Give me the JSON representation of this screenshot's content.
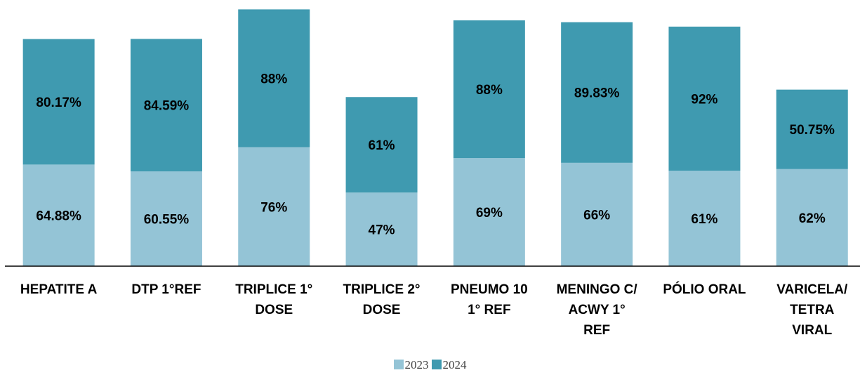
{
  "chart_data": {
    "type": "stacked_bar",
    "categories": [
      "HEPATITE A",
      "DTP 1°REF",
      "TRIPLICE 1° DOSE",
      "TRIPLICE 2° DOSE",
      "PNEUMO 10 1° REF",
      "MENINGO C/ ACWY 1° REF",
      "PÓLIO ORAL",
      "VARICELA/ TETRA VIRAL"
    ],
    "series": [
      {
        "name": "2023",
        "color": "#94c4d6",
        "values": [
          64.88,
          60.55,
          76,
          47,
          69,
          66,
          61,
          62
        ],
        "value_labels": [
          "64.88%",
          "60.55%",
          "76%",
          "47%",
          "69%",
          "66%",
          "61%",
          "62%"
        ]
      },
      {
        "name": "2024",
        "color": "#3f9ab0",
        "values": [
          80.17,
          84.59,
          88,
          61,
          88,
          89.83,
          92,
          50.75
        ],
        "value_labels": [
          "80.17%",
          "84.59%",
          "88%",
          "61%",
          "88%",
          "89.83%",
          "92%",
          "50.75%"
        ]
      }
    ],
    "ylim": [
      0,
      170
    ]
  }
}
